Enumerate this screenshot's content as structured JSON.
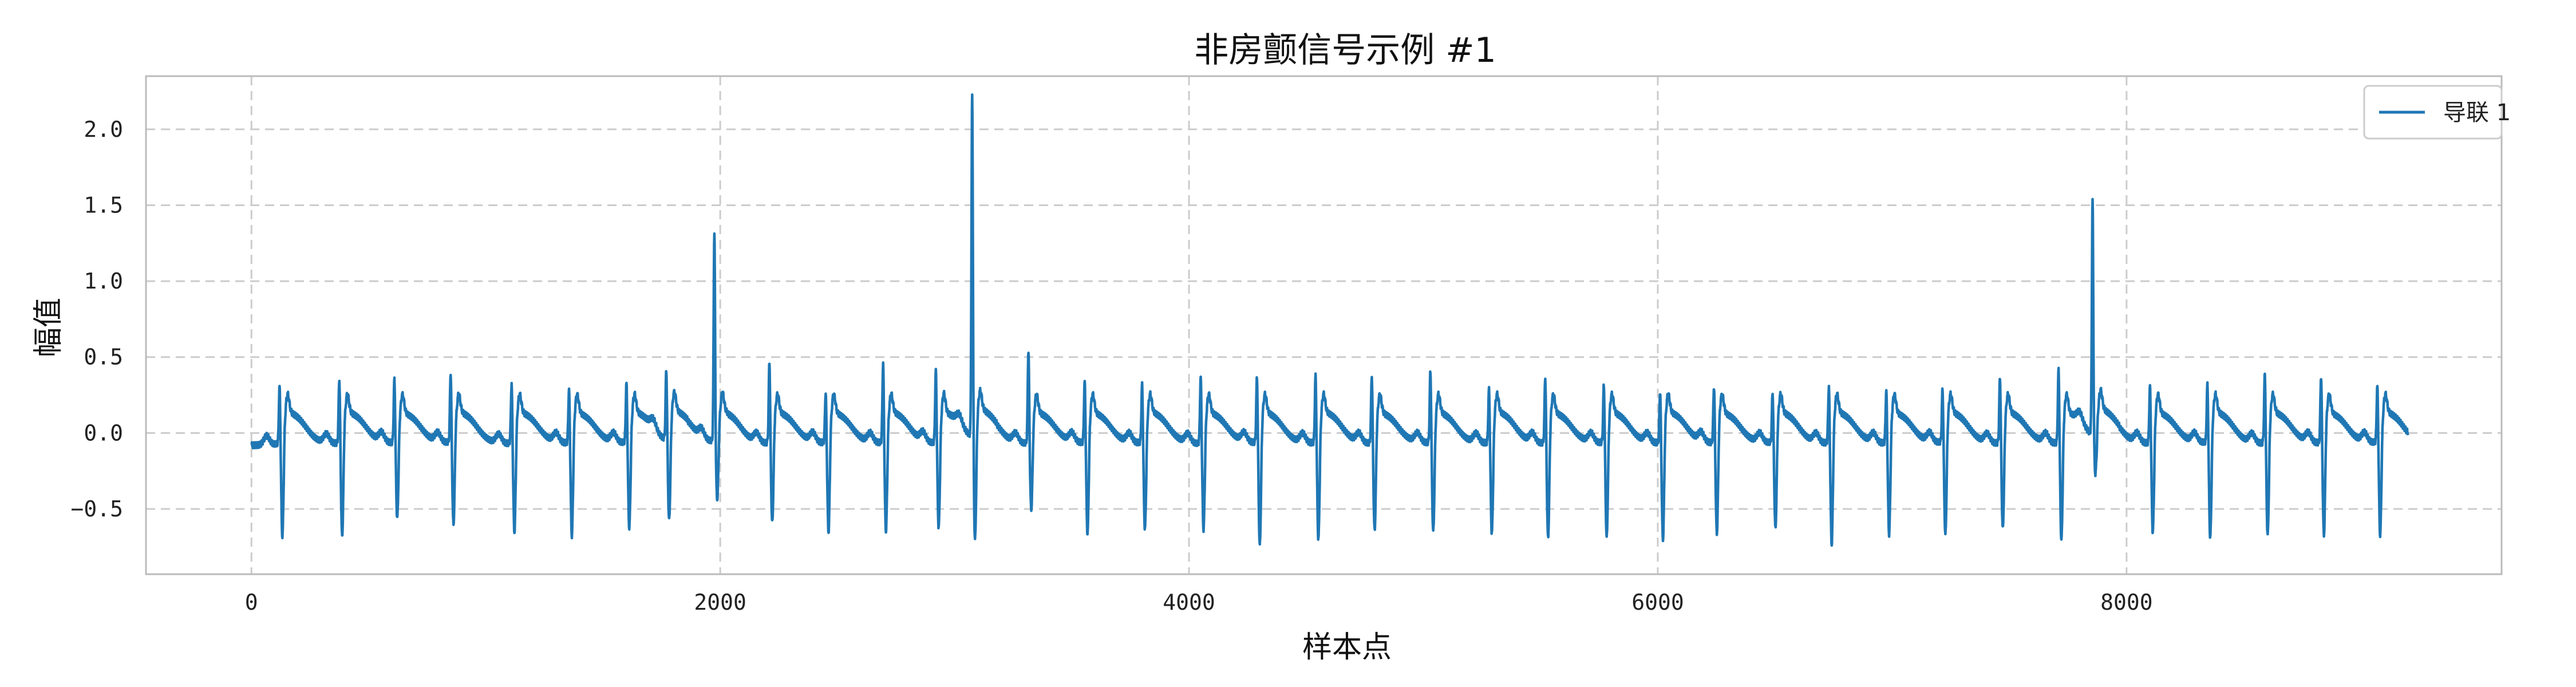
{
  "chart_data": {
    "type": "line",
    "title": "非房颤信号示例 #1",
    "xlabel": "样本点",
    "ylabel": "幅值",
    "xlim": [
      -450,
      9600
    ],
    "ylim": [
      -0.93,
      2.35
    ],
    "xticks": [
      0,
      2000,
      4000,
      6000,
      8000
    ],
    "xtick_labels": [
      "0",
      "2000",
      "4000",
      "6000",
      "8000"
    ],
    "yticks": [
      -0.5,
      0.0,
      0.5,
      1.0,
      1.5,
      2.0
    ],
    "ytick_labels": [
      "−0.5",
      "0.0",
      "0.5",
      "1.0",
      "1.5",
      "2.0"
    ],
    "grid": true,
    "legend_position": "top-right",
    "colors": {
      "series": "#1f77b4",
      "grid": "#cccccc",
      "frame": "#bbbbbb"
    },
    "series": [
      {
        "name": "导联 1",
        "sample_count": 9200,
        "baseline_amplitude": -0.08,
        "r_peaks": [
          {
            "x": 120,
            "peak": 0.31,
            "trough": -0.7
          },
          {
            "x": 375,
            "peak": 0.35,
            "trough": -0.7
          },
          {
            "x": 610,
            "peak": 0.34,
            "trough": -0.59
          },
          {
            "x": 850,
            "peak": 0.39,
            "trough": -0.63
          },
          {
            "x": 1110,
            "peak": 0.32,
            "trough": -0.67
          },
          {
            "x": 1355,
            "peak": 0.28,
            "trough": -0.7
          },
          {
            "x": 1600,
            "peak": 0.32,
            "trough": -0.65
          },
          {
            "x": 1770,
            "peak": 0.38,
            "trough": -0.62
          },
          {
            "x": 1975,
            "peak": 1.31,
            "trough": -0.47
          },
          {
            "x": 2210,
            "peak": 0.46,
            "trough": -0.62
          },
          {
            "x": 2450,
            "peak": 0.26,
            "trough": -0.68
          },
          {
            "x": 2695,
            "peak": 0.45,
            "trough": -0.67
          },
          {
            "x": 2920,
            "peak": 0.4,
            "trough": -0.65
          },
          {
            "x": 3075,
            "peak": 2.19,
            "trough": -0.76
          },
          {
            "x": 3315,
            "peak": 0.54,
            "trough": -0.53
          },
          {
            "x": 3555,
            "peak": 0.33,
            "trough": -0.69
          },
          {
            "x": 3800,
            "peak": 0.31,
            "trough": -0.66
          },
          {
            "x": 4050,
            "peak": 0.36,
            "trough": -0.65
          },
          {
            "x": 4290,
            "peak": 0.36,
            "trough": -0.77
          },
          {
            "x": 4540,
            "peak": 0.37,
            "trough": -0.72
          },
          {
            "x": 4780,
            "peak": 0.37,
            "trough": -0.67
          },
          {
            "x": 5030,
            "peak": 0.4,
            "trough": -0.67
          },
          {
            "x": 5280,
            "peak": 0.28,
            "trough": -0.68
          },
          {
            "x": 5520,
            "peak": 0.36,
            "trough": -0.72
          },
          {
            "x": 5770,
            "peak": 0.31,
            "trough": -0.71
          },
          {
            "x": 6010,
            "peak": 0.27,
            "trough": -0.73
          },
          {
            "x": 6240,
            "peak": 0.3,
            "trough": -0.69
          },
          {
            "x": 6490,
            "peak": 0.26,
            "trough": -0.65
          },
          {
            "x": 6730,
            "peak": 0.3,
            "trough": -0.76
          },
          {
            "x": 6975,
            "peak": 0.27,
            "trough": -0.69
          },
          {
            "x": 7215,
            "peak": 0.28,
            "trough": -0.7
          },
          {
            "x": 7460,
            "peak": 0.36,
            "trough": -0.66
          },
          {
            "x": 7710,
            "peak": 0.41,
            "trough": -0.73
          },
          {
            "x": 7855,
            "peak": 1.47,
            "trough": -0.33
          },
          {
            "x": 8100,
            "peak": 0.3,
            "trough": -0.68
          },
          {
            "x": 8345,
            "peak": 0.31,
            "trough": -0.72
          },
          {
            "x": 8590,
            "peak": 0.38,
            "trough": -0.7
          },
          {
            "x": 8830,
            "peak": 0.37,
            "trough": -0.7
          },
          {
            "x": 9070,
            "peak": 0.3,
            "trough": -0.7
          }
        ]
      }
    ]
  }
}
